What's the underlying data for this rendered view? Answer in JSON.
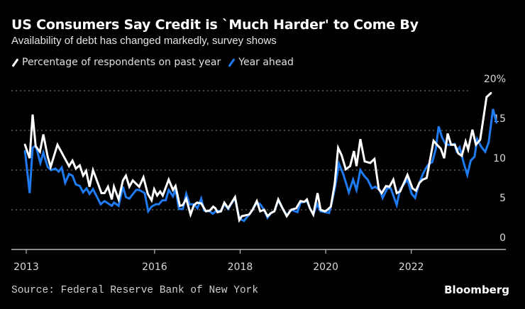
{
  "header": {
    "title": "US Consumers Say Credit is `Much Harder' to Come By",
    "subtitle": "Availability of debt has changed markedly, survey shows"
  },
  "legend": [
    {
      "label": "Percentage of respondents on past year",
      "color": "#ffffff"
    },
    {
      "label": "Year ahead",
      "color": "#1f7bf2"
    }
  ],
  "footer": {
    "source": "Source: Federal Reserve Bank of New York",
    "brand": "Bloomberg"
  },
  "chart_data": {
    "type": "line",
    "title": "US Consumers Say Credit is `Much Harder' to Come By",
    "subtitle": "Availability of debt has changed markedly, survey shows",
    "xlabel": "",
    "ylabel": "",
    "ylim": [
      0,
      20
    ],
    "yticks": [
      0,
      5,
      10,
      15,
      20
    ],
    "ytick_labels": [
      "0",
      "5",
      "10",
      "15",
      "20%"
    ],
    "xlim": [
      2012.97,
      2023.4
    ],
    "xticks": [
      2013,
      2016,
      2018,
      2020,
      2022
    ],
    "xtick_labels": [
      "2013",
      "2016",
      "2018",
      "2020",
      "2022"
    ],
    "grid": "horizontal-dotted",
    "legend_position": "top-left",
    "series": [
      {
        "name": "Percentage of respondents on past year",
        "color": "#ffffff",
        "points": [
          [
            2012.97,
            13.2
          ],
          [
            2013.08,
            11.5
          ],
          [
            2013.15,
            17.0
          ],
          [
            2013.22,
            13.0
          ],
          [
            2013.32,
            12.3
          ],
          [
            2013.4,
            14.5
          ],
          [
            2013.5,
            11.7
          ],
          [
            2013.57,
            10.4
          ],
          [
            2013.73,
            13.2
          ],
          [
            2014.0,
            10.5
          ],
          [
            2014.08,
            11.2
          ],
          [
            2014.16,
            10.2
          ],
          [
            2014.25,
            10.6
          ],
          [
            2014.33,
            9.3
          ],
          [
            2014.4,
            9.9
          ],
          [
            2014.48,
            7.9
          ],
          [
            2014.56,
            10.0
          ],
          [
            2014.76,
            7.1
          ],
          [
            2014.83,
            7.1
          ],
          [
            2014.91,
            7.9
          ],
          [
            2015.0,
            6.3
          ],
          [
            2015.05,
            7.9
          ],
          [
            2015.16,
            6.3
          ],
          [
            2015.26,
            8.7
          ],
          [
            2015.33,
            9.3
          ],
          [
            2015.41,
            7.9
          ],
          [
            2015.49,
            8.7
          ],
          [
            2015.64,
            7.9
          ],
          [
            2015.74,
            9.1
          ],
          [
            2015.84,
            7.0
          ],
          [
            2015.93,
            6.2
          ],
          [
            2015.99,
            7.6
          ],
          [
            2016.06,
            6.8
          ],
          [
            2016.13,
            7.3
          ],
          [
            2016.19,
            6.8
          ],
          [
            2016.33,
            8.8
          ],
          [
            2016.43,
            7.5
          ],
          [
            2016.49,
            8.0
          ],
          [
            2016.59,
            5.5
          ],
          [
            2016.66,
            5.6
          ],
          [
            2016.74,
            6.4
          ],
          [
            2016.84,
            4.4
          ],
          [
            2016.92,
            5.6
          ],
          [
            2016.99,
            5.9
          ],
          [
            2017.09,
            5.8
          ],
          [
            2017.2,
            4.8
          ],
          [
            2017.29,
            4.9
          ],
          [
            2017.37,
            5.4
          ],
          [
            2017.42,
            5.2
          ],
          [
            2017.47,
            4.7
          ],
          [
            2017.55,
            4.8
          ],
          [
            2017.63,
            5.9
          ],
          [
            2017.72,
            5.2
          ],
          [
            2017.88,
            6.6
          ],
          [
            2017.98,
            3.7
          ],
          [
            2018.04,
            4.2
          ],
          [
            2018.21,
            4.4
          ],
          [
            2018.29,
            5.0
          ],
          [
            2018.39,
            6.1
          ],
          [
            2018.47,
            4.8
          ],
          [
            2018.56,
            5.0
          ],
          [
            2018.64,
            4.2
          ],
          [
            2018.72,
            4.6
          ],
          [
            2018.8,
            4.8
          ],
          [
            2018.89,
            6.3
          ],
          [
            2018.99,
            5.2
          ],
          [
            2019.09,
            4.2
          ],
          [
            2019.19,
            5.0
          ],
          [
            2019.31,
            5.2
          ],
          [
            2019.41,
            6.1
          ],
          [
            2019.5,
            6.0
          ],
          [
            2019.56,
            6.3
          ],
          [
            2019.63,
            5.2
          ],
          [
            2019.71,
            4.4
          ],
          [
            2019.81,
            7.1
          ],
          [
            2019.88,
            5.0
          ],
          [
            2019.98,
            4.8
          ],
          [
            2020.04,
            5.0
          ],
          [
            2020.12,
            5.4
          ],
          [
            2020.21,
            8.3
          ],
          [
            2020.29,
            12.8
          ],
          [
            2020.37,
            11.9
          ],
          [
            2020.47,
            10.1
          ],
          [
            2020.57,
            10.5
          ],
          [
            2020.66,
            12.4
          ],
          [
            2020.72,
            10.5
          ],
          [
            2020.81,
            13.9
          ],
          [
            2020.91,
            11.1
          ],
          [
            2021.04,
            10.9
          ],
          [
            2021.14,
            11.4
          ],
          [
            2021.24,
            7.6
          ],
          [
            2021.31,
            7.1
          ],
          [
            2021.41,
            8.0
          ],
          [
            2021.49,
            7.9
          ],
          [
            2021.58,
            8.8
          ],
          [
            2021.66,
            7.1
          ],
          [
            2021.74,
            7.3
          ],
          [
            2021.91,
            9.4
          ],
          [
            2022.03,
            7.7
          ],
          [
            2022.11,
            7.4
          ],
          [
            2022.19,
            8.4
          ],
          [
            2022.27,
            8.8
          ],
          [
            2022.36,
            9.0
          ],
          [
            2022.52,
            13.7
          ],
          [
            2022.6,
            13.2
          ],
          [
            2022.69,
            12.7
          ],
          [
            2022.77,
            11.5
          ],
          [
            2022.85,
            14.6
          ],
          [
            2022.93,
            13.2
          ],
          [
            2023.02,
            13.2
          ],
          [
            2023.1,
            12.1
          ],
          [
            2023.18,
            11.8
          ],
          [
            2023.27,
            13.6
          ],
          [
            2023.33,
            12.6
          ],
          [
            2023.43,
            15.1
          ],
          [
            2023.51,
            13.2
          ],
          [
            2023.61,
            13.8
          ],
          [
            2023.68,
            16.3
          ],
          [
            2023.76,
            19.2
          ],
          [
            2023.86,
            19.7
          ]
        ]
      },
      {
        "name": "Year ahead",
        "color": "#1f7bf2",
        "points": [
          [
            2012.97,
            12.4
          ],
          [
            2013.08,
            7.1
          ],
          [
            2013.15,
            12.8
          ],
          [
            2013.22,
            13.1
          ],
          [
            2013.33,
            10.9
          ],
          [
            2013.4,
            12.2
          ],
          [
            2013.5,
            10.4
          ],
          [
            2013.58,
            10.0
          ],
          [
            2013.68,
            10.2
          ],
          [
            2013.76,
            9.8
          ],
          [
            2013.83,
            10.3
          ],
          [
            2013.91,
            8.4
          ],
          [
            2014.0,
            9.5
          ],
          [
            2014.08,
            9.3
          ],
          [
            2014.16,
            8.2
          ],
          [
            2014.25,
            8.0
          ],
          [
            2014.33,
            7.2
          ],
          [
            2014.41,
            7.7
          ],
          [
            2014.48,
            7.0
          ],
          [
            2014.56,
            7.6
          ],
          [
            2014.74,
            5.7
          ],
          [
            2014.83,
            6.1
          ],
          [
            2015.0,
            5.5
          ],
          [
            2015.05,
            5.9
          ],
          [
            2015.16,
            5.5
          ],
          [
            2015.26,
            7.9
          ],
          [
            2015.33,
            6.6
          ],
          [
            2015.41,
            6.4
          ],
          [
            2015.57,
            7.5
          ],
          [
            2015.64,
            7.5
          ],
          [
            2015.77,
            7.1
          ],
          [
            2015.85,
            4.8
          ],
          [
            2015.93,
            5.4
          ],
          [
            2016.03,
            5.7
          ],
          [
            2016.1,
            5.7
          ],
          [
            2016.18,
            6.2
          ],
          [
            2016.26,
            6.2
          ],
          [
            2016.33,
            7.5
          ],
          [
            2016.43,
            6.7
          ],
          [
            2016.49,
            7.6
          ],
          [
            2016.57,
            5.1
          ],
          [
            2016.66,
            5.1
          ],
          [
            2016.74,
            7.0
          ],
          [
            2016.82,
            5.7
          ],
          [
            2016.92,
            5.7
          ],
          [
            2017.0,
            5.2
          ],
          [
            2017.09,
            6.4
          ],
          [
            2017.16,
            4.9
          ],
          [
            2017.29,
            4.8
          ],
          [
            2017.36,
            4.5
          ],
          [
            2017.45,
            4.9
          ],
          [
            2017.55,
            4.8
          ],
          [
            2017.63,
            5.7
          ],
          [
            2017.72,
            5.1
          ],
          [
            2017.88,
            6.5
          ],
          [
            2017.98,
            3.9
          ],
          [
            2018.09,
            3.6
          ],
          [
            2018.21,
            4.4
          ],
          [
            2018.29,
            5.0
          ],
          [
            2018.39,
            5.9
          ],
          [
            2018.47,
            5.7
          ],
          [
            2018.56,
            5.0
          ],
          [
            2018.64,
            4.0
          ],
          [
            2018.72,
            4.6
          ],
          [
            2018.8,
            4.8
          ],
          [
            2018.89,
            6.2
          ],
          [
            2018.99,
            5.2
          ],
          [
            2019.09,
            4.3
          ],
          [
            2019.19,
            5.0
          ],
          [
            2019.34,
            4.7
          ],
          [
            2019.41,
            5.9
          ],
          [
            2019.5,
            6.0
          ],
          [
            2019.56,
            6.1
          ],
          [
            2019.63,
            5.2
          ],
          [
            2019.71,
            4.4
          ],
          [
            2019.8,
            5.7
          ],
          [
            2019.88,
            4.8
          ],
          [
            2019.99,
            4.7
          ],
          [
            2020.08,
            4.6
          ],
          [
            2020.12,
            5.4
          ],
          [
            2020.21,
            7.6
          ],
          [
            2020.31,
            10.8
          ],
          [
            2020.41,
            9.5
          ],
          [
            2020.54,
            7.2
          ],
          [
            2020.64,
            8.8
          ],
          [
            2020.72,
            7.5
          ],
          [
            2020.81,
            10.0
          ],
          [
            2020.91,
            9.2
          ],
          [
            2020.98,
            8.8
          ],
          [
            2021.08,
            7.7
          ],
          [
            2021.16,
            7.9
          ],
          [
            2021.26,
            7.5
          ],
          [
            2021.33,
            6.5
          ],
          [
            2021.44,
            7.7
          ],
          [
            2021.52,
            7.7
          ],
          [
            2021.66,
            5.6
          ],
          [
            2021.74,
            7.6
          ],
          [
            2021.91,
            8.8
          ],
          [
            2022.01,
            7.0
          ],
          [
            2022.09,
            6.5
          ],
          [
            2022.17,
            8.1
          ],
          [
            2022.27,
            9.5
          ],
          [
            2022.36,
            10.4
          ],
          [
            2022.42,
            10.8
          ],
          [
            2022.49,
            11.0
          ],
          [
            2022.57,
            12.6
          ],
          [
            2022.64,
            15.5
          ],
          [
            2022.72,
            14.1
          ],
          [
            2022.81,
            13.2
          ],
          [
            2022.93,
            13.2
          ],
          [
            2023.01,
            13.3
          ],
          [
            2023.06,
            12.4
          ],
          [
            2023.13,
            12.9
          ],
          [
            2023.23,
            10.8
          ],
          [
            2023.31,
            9.4
          ],
          [
            2023.39,
            11.2
          ],
          [
            2023.48,
            11.7
          ],
          [
            2023.54,
            13.9
          ],
          [
            2023.64,
            12.9
          ],
          [
            2023.73,
            12.3
          ],
          [
            2023.81,
            13.5
          ],
          [
            2023.91,
            17.7
          ],
          [
            2023.99,
            16.0
          ]
        ]
      }
    ]
  }
}
